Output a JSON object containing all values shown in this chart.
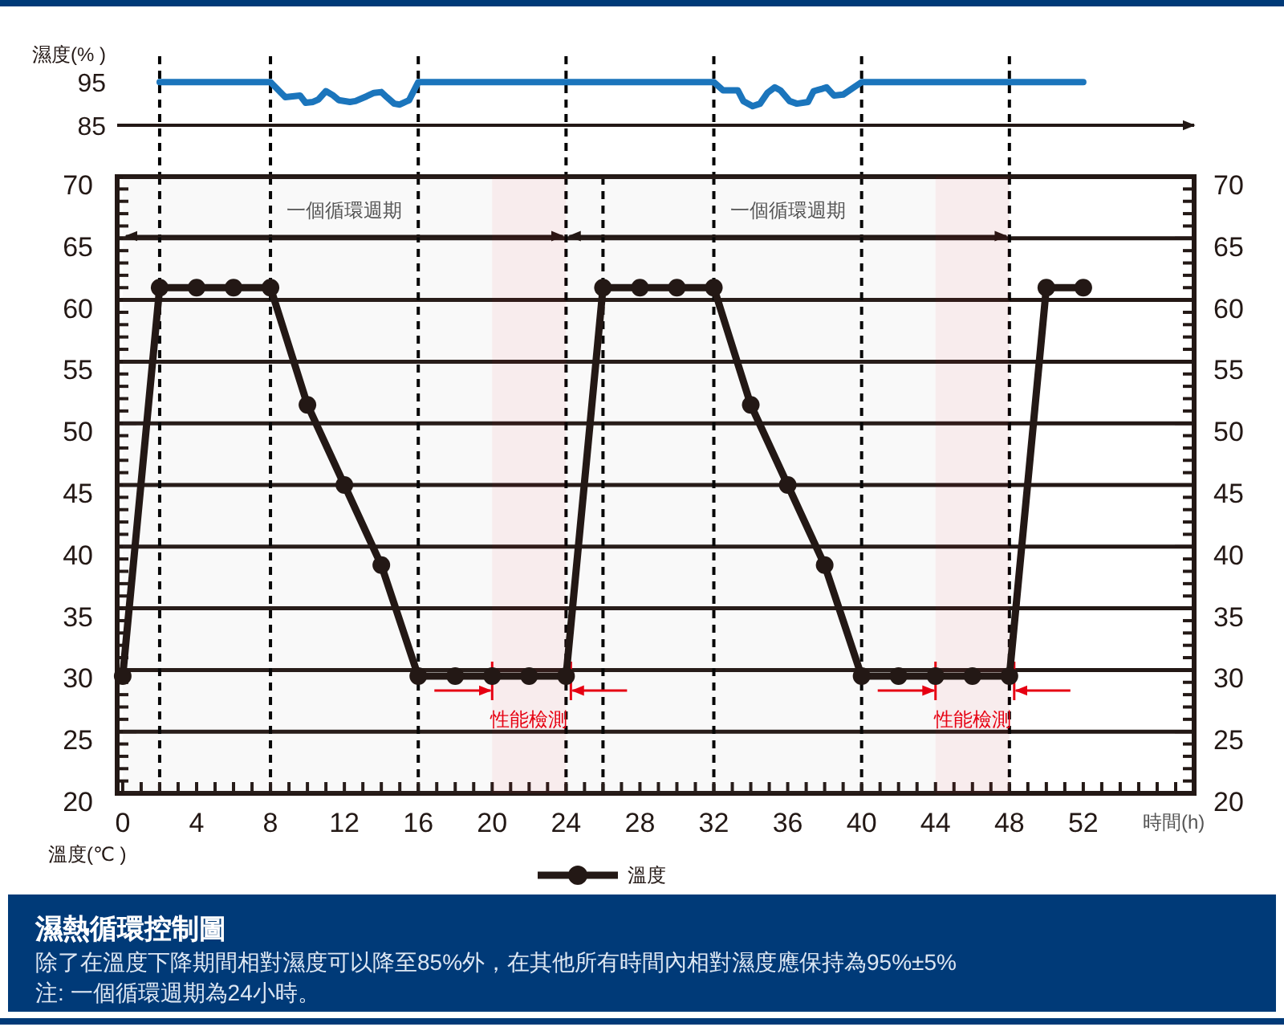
{
  "chart_data": [
    {
      "type": "line",
      "ylabel": "濕度(% )",
      "xlim": [
        -0.3,
        58
      ],
      "ylim": [
        85,
        101
      ],
      "yticks": [
        95,
        85
      ],
      "tick_labels": "y",
      "grid": false,
      "series": [
        {
          "color": "#1b75bc",
          "x": [
            2,
            8,
            8.8,
            9.6,
            9.9,
            10.3,
            10.6,
            11,
            11.4,
            11.7,
            12.3,
            12.6,
            13.2,
            13.6,
            14,
            14.3,
            14.7,
            15,
            15.5,
            16,
            24,
            32,
            32.5,
            33.3,
            33.6,
            34.1,
            34.5,
            34.9,
            35.3,
            35.6,
            36.1,
            36.5,
            37.1,
            37.4,
            37.9,
            38.1,
            38.5,
            39,
            40,
            52
          ],
          "values": [
            95,
            95,
            91.5,
            91.9,
            90.2,
            90.4,
            91,
            92.9,
            91.9,
            90.8,
            90.4,
            90.6,
            91.7,
            92.5,
            92.7,
            91.5,
            90,
            89.8,
            90.8,
            95,
            95,
            95,
            93.1,
            93.1,
            90.6,
            89.4,
            90.0,
            92.5,
            93.8,
            93.1,
            90.6,
            90.0,
            90.4,
            92.9,
            93.5,
            93.8,
            91.9,
            92.1,
            95,
            95
          ]
        }
      ],
      "ref_lines": [
        {
          "axis": "x",
          "value": 2,
          "line_style": "dashed"
        },
        {
          "axis": "x",
          "value": 8,
          "line_style": "dashed"
        },
        {
          "axis": "x",
          "value": 16,
          "line_style": "dashed"
        },
        {
          "axis": "x",
          "value": 24,
          "line_style": "dashed"
        },
        {
          "axis": "x",
          "value": 32,
          "line_style": "dashed"
        },
        {
          "axis": "x",
          "value": 40,
          "line_style": "dashed"
        },
        {
          "axis": "x",
          "value": 48,
          "line_style": "dashed"
        }
      ]
    },
    {
      "type": "line",
      "title": "濕熱循環控制圖",
      "xlabel": "時間(h)",
      "ylabel": "溫度(℃ )",
      "xlim": [
        -0.3,
        58
      ],
      "xticks": [
        0,
        4,
        8,
        12,
        16,
        20,
        24,
        28,
        32,
        36,
        40,
        44,
        48,
        52
      ],
      "ylim": [
        20,
        70
      ],
      "yticks": [
        20,
        25,
        30,
        35,
        40,
        45,
        50,
        55,
        60,
        65,
        70
      ],
      "y2lim": [
        20,
        70
      ],
      "y2ticks": [
        20,
        25,
        30,
        35,
        40,
        45,
        50,
        55,
        60,
        65,
        70
      ],
      "grid": "y",
      "legend": "bottom",
      "marker": "circle",
      "line_style": "solid",
      "series": [
        {
          "name": "溫度",
          "color": "#231815",
          "x": [
            0,
            2,
            4,
            6,
            8,
            10,
            12,
            14,
            16,
            18,
            20,
            22,
            24,
            26,
            28,
            30,
            32,
            34,
            36,
            38,
            40,
            42,
            44,
            46,
            48,
            50,
            52
          ],
          "values": [
            29.5,
            61,
            61,
            61,
            61,
            51.5,
            45,
            38.5,
            29.5,
            29.5,
            29.5,
            29.5,
            29.5,
            61,
            61,
            61,
            61,
            51.5,
            45,
            38.5,
            29.5,
            29.5,
            29.5,
            29.5,
            29.5,
            61,
            61
          ]
        }
      ],
      "ref_lines": [
        {
          "axis": "x",
          "value": 2,
          "line_style": "dashed"
        },
        {
          "axis": "x",
          "value": 8,
          "line_style": "dashed"
        },
        {
          "axis": "x",
          "value": 16,
          "line_style": "dashed"
        },
        {
          "axis": "x",
          "value": 24,
          "line_style": "dashed"
        },
        {
          "axis": "x",
          "value": 26,
          "line_style": "dashed"
        },
        {
          "axis": "x",
          "value": 32,
          "line_style": "dashed"
        },
        {
          "axis": "x",
          "value": 40,
          "line_style": "dashed"
        },
        {
          "axis": "x",
          "value": 48,
          "line_style": "dashed"
        }
      ],
      "bands": [
        {
          "axis": "x",
          "from": 0,
          "to": 24,
          "label": "一個循環週期"
        },
        {
          "axis": "x",
          "from": 24,
          "to": 48,
          "label": "一個循環週期"
        },
        {
          "axis": "x",
          "from": 20,
          "to": 24,
          "label": "性能檢測",
          "color": "#e60012"
        },
        {
          "axis": "x",
          "from": 44,
          "to": 48,
          "label": "性能檢測",
          "color": "#e60012"
        }
      ],
      "annotations": [
        "除了在溫度下降期間相對濕度可以降至85%外，在其他所有時間內相對濕度應保持為95%±5%",
        "注: 一個循環週期為24小時。"
      ]
    }
  ]
}
